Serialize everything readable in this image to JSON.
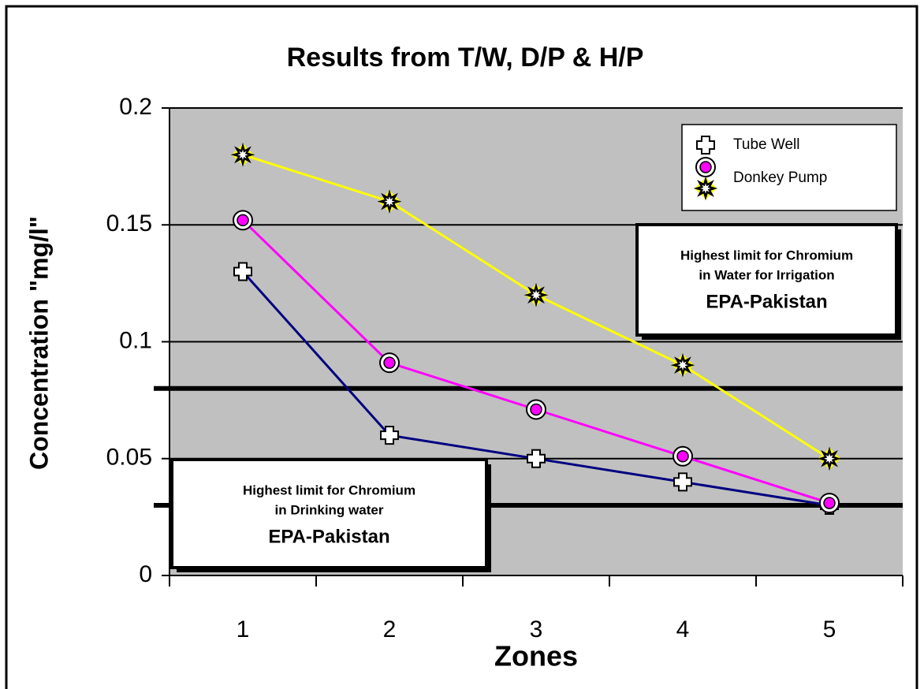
{
  "chart_data": {
    "type": "line",
    "title": "Results from T/W, D/P & H/P",
    "x_label": "Zones",
    "y_label": "Concentration \"mg/l\"",
    "categories": [
      "1",
      "2",
      "3",
      "4",
      "5"
    ],
    "series": [
      {
        "name": "Tube Well",
        "color": "#000080",
        "marker": "cross",
        "values": [
          0.13,
          0.06,
          0.05,
          0.04,
          0.03
        ]
      },
      {
        "name": "Donkey Pump",
        "color": "#ff00ff",
        "marker": "circle",
        "values": [
          0.152,
          0.091,
          0.071,
          0.051,
          0.031
        ]
      },
      {
        "name": null,
        "color": "#ffff00",
        "marker": "star",
        "values": [
          0.18,
          0.16,
          0.12,
          0.09,
          0.05
        ]
      }
    ],
    "ylim": [
      0,
      0.2
    ],
    "yticks": [
      0,
      0.05,
      0.1,
      0.15,
      0.2
    ],
    "grid": true,
    "legend": "upper right",
    "reference_lines": [
      {
        "value": 0.08,
        "label_lines": [
          "Highest limit for Chromium",
          "in Water for Irrigation",
          "EPA-Pakistan"
        ]
      },
      {
        "value": 0.03,
        "label_lines": [
          "Highest limit for Chromium",
          "in Drinking water",
          "EPA-Pakistan"
        ]
      }
    ]
  }
}
